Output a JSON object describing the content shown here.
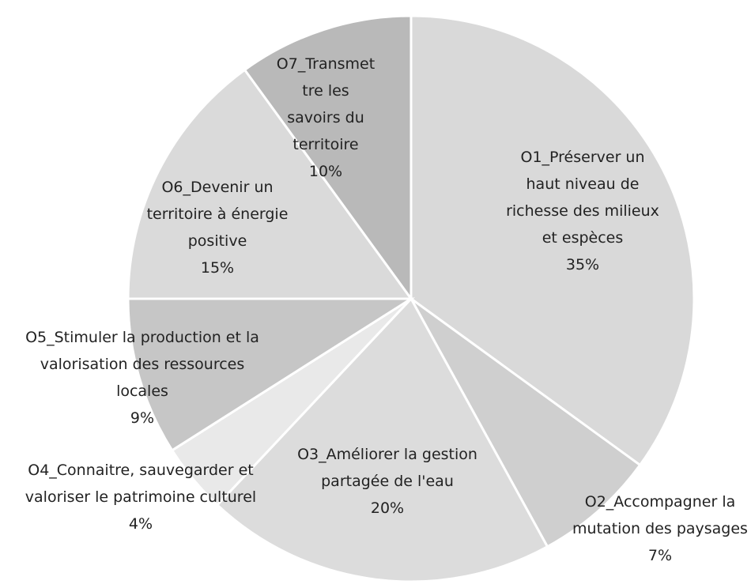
{
  "chart_data": {
    "type": "pie",
    "categories": [
      "O1_Préserver un haut niveau de richesse des milieux et espèces",
      "O2_Accompagner la mutation des paysages",
      "O3_Améliorer la gestion partagée de l'eau",
      "O4_Connaitre, sauvegarder et valoriser le patrimoine culturel",
      "O5_Stimuler la production et la valorisation des ressources locales",
      "O6_Devenir un territoire à énergie positive",
      "O7_Transmettre les savoirs du territoire"
    ],
    "values": [
      35,
      7,
      20,
      4,
      9,
      15,
      10
    ],
    "value_labels": [
      "35%",
      "7%",
      "20%",
      "4%",
      "9%",
      "15%",
      "10%"
    ],
    "colors": [
      "#d9d9d9",
      "#cfcfcf",
      "#dcdcdc",
      "#e9e9e9",
      "#c6c6c6",
      "#dadada",
      "#b9b9b9"
    ]
  }
}
